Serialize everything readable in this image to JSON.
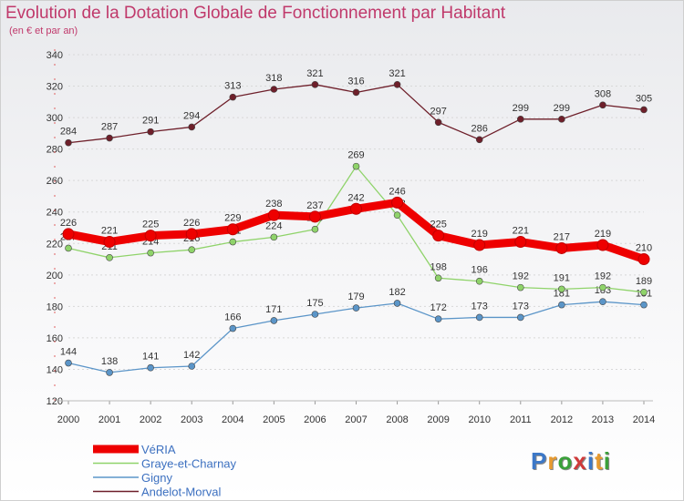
{
  "chart_data": {
    "type": "line",
    "title": "Evolution de la Dotation Globale de Fonctionnement par Habitant",
    "subtitle": "(en € et par an)",
    "x": [
      2000,
      2001,
      2002,
      2003,
      2004,
      2005,
      2006,
      2007,
      2008,
      2009,
      2010,
      2011,
      2012,
      2013,
      2014
    ],
    "ylim": [
      120,
      340
    ],
    "yticks": [
      120,
      140,
      160,
      180,
      200,
      220,
      240,
      260,
      280,
      300,
      320,
      340
    ],
    "series": [
      {
        "name": "Andelot-Morval",
        "color": "#6e1f2a",
        "values": [
          284,
          287,
          291,
          294,
          313,
          318,
          321,
          316,
          321,
          297,
          286,
          299,
          299,
          308,
          305
        ]
      },
      {
        "name": "Gigny",
        "color": "#5b95c8",
        "values": [
          144,
          138,
          141,
          142,
          166,
          171,
          175,
          179,
          182,
          172,
          173,
          173,
          181,
          183,
          181
        ]
      },
      {
        "name": "Graye-et-Charnay",
        "color": "#8fd36a",
        "values": [
          217,
          211,
          214,
          216,
          221,
          224,
          229,
          269,
          238,
          198,
          196,
          192,
          191,
          192,
          189
        ]
      },
      {
        "name": "VéRIA",
        "color": "#ee0000",
        "values": [
          226,
          221,
          225,
          226,
          229,
          238,
          237,
          242,
          246,
          225,
          219,
          221,
          217,
          219,
          210
        ]
      }
    ]
  },
  "legend": [
    "VéRIA",
    "Gigny",
    "Graye-et-Charnay",
    "Andelot-Morval"
  ],
  "logo": {
    "letters": [
      "P",
      "r",
      "o",
      "x",
      "i",
      "t",
      "i"
    ],
    "colors": [
      "#3c78c8",
      "#e89a2e",
      "#3aa03a",
      "#d03a3a",
      "#3c78c8",
      "#e89a2e",
      "#3aa03a"
    ]
  }
}
